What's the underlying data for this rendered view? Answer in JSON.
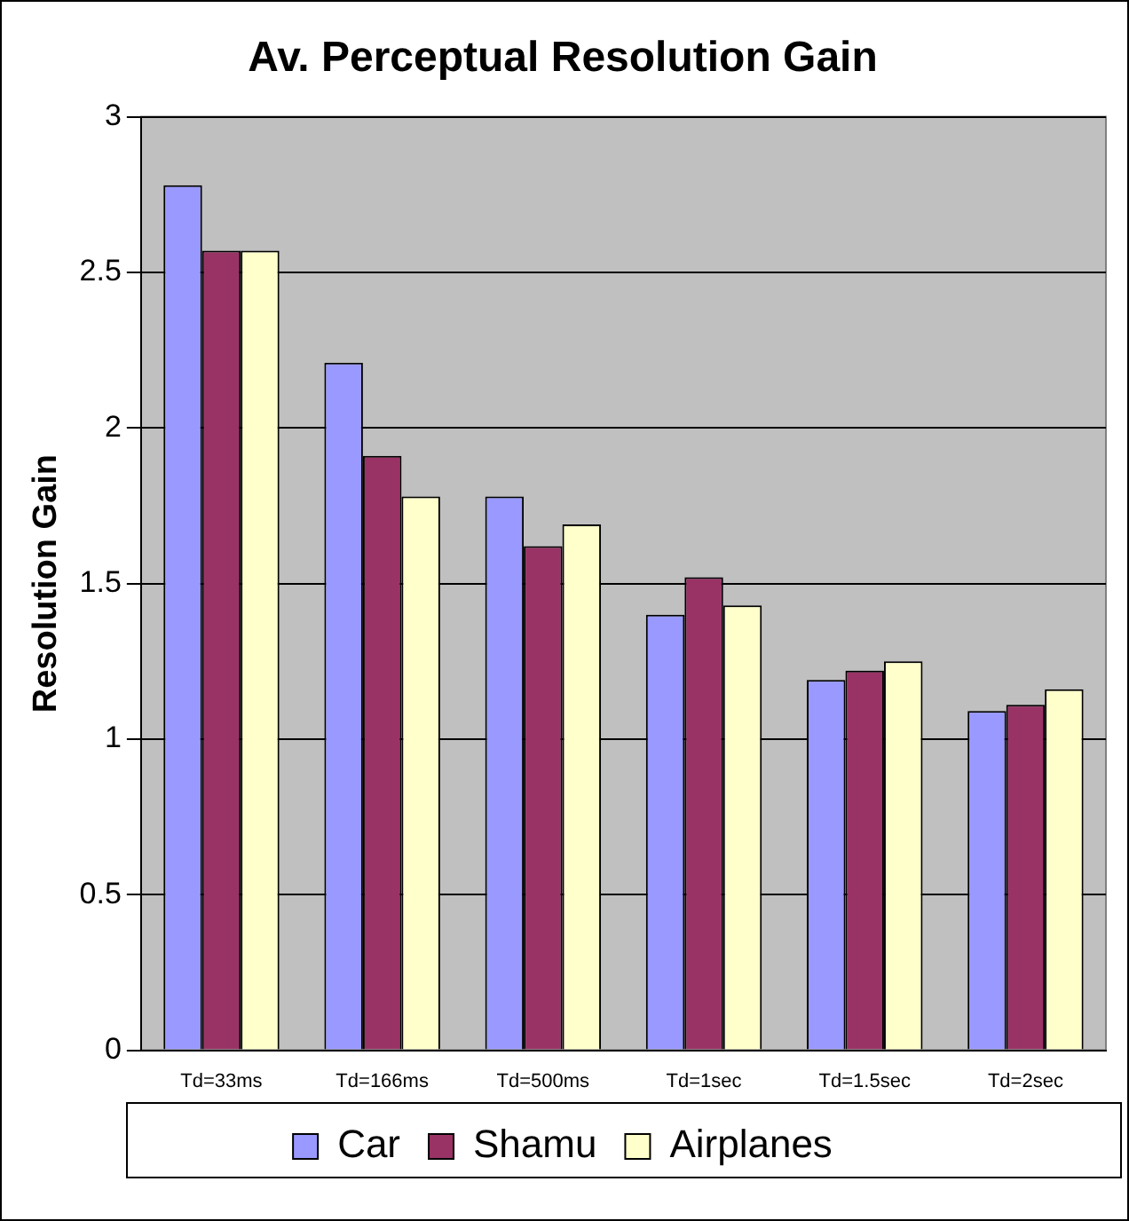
{
  "chart_data": {
    "type": "bar",
    "title": "Av. Perceptual Resolution Gain",
    "ylabel": "Resolution Gain",
    "categories": [
      "Td=33ms",
      "Td=166ms",
      "Td=500ms",
      "Td=1sec",
      "Td=1.5sec",
      "Td=2sec"
    ],
    "series": [
      {
        "name": "Car",
        "color": "#9999ff",
        "values": [
          2.78,
          2.21,
          1.78,
          1.4,
          1.19,
          1.09
        ]
      },
      {
        "name": "Shamu",
        "color": "#993366",
        "values": [
          2.57,
          1.91,
          1.62,
          1.52,
          1.22,
          1.11
        ]
      },
      {
        "name": "Airplanes",
        "color": "#ffffcc",
        "values": [
          2.57,
          1.78,
          1.69,
          1.43,
          1.25,
          1.16
        ]
      }
    ],
    "ylim": [
      0,
      3
    ],
    "yticks": [
      0,
      0.5,
      1,
      1.5,
      2,
      2.5,
      3
    ],
    "grid": "y",
    "legend": "bottom"
  }
}
